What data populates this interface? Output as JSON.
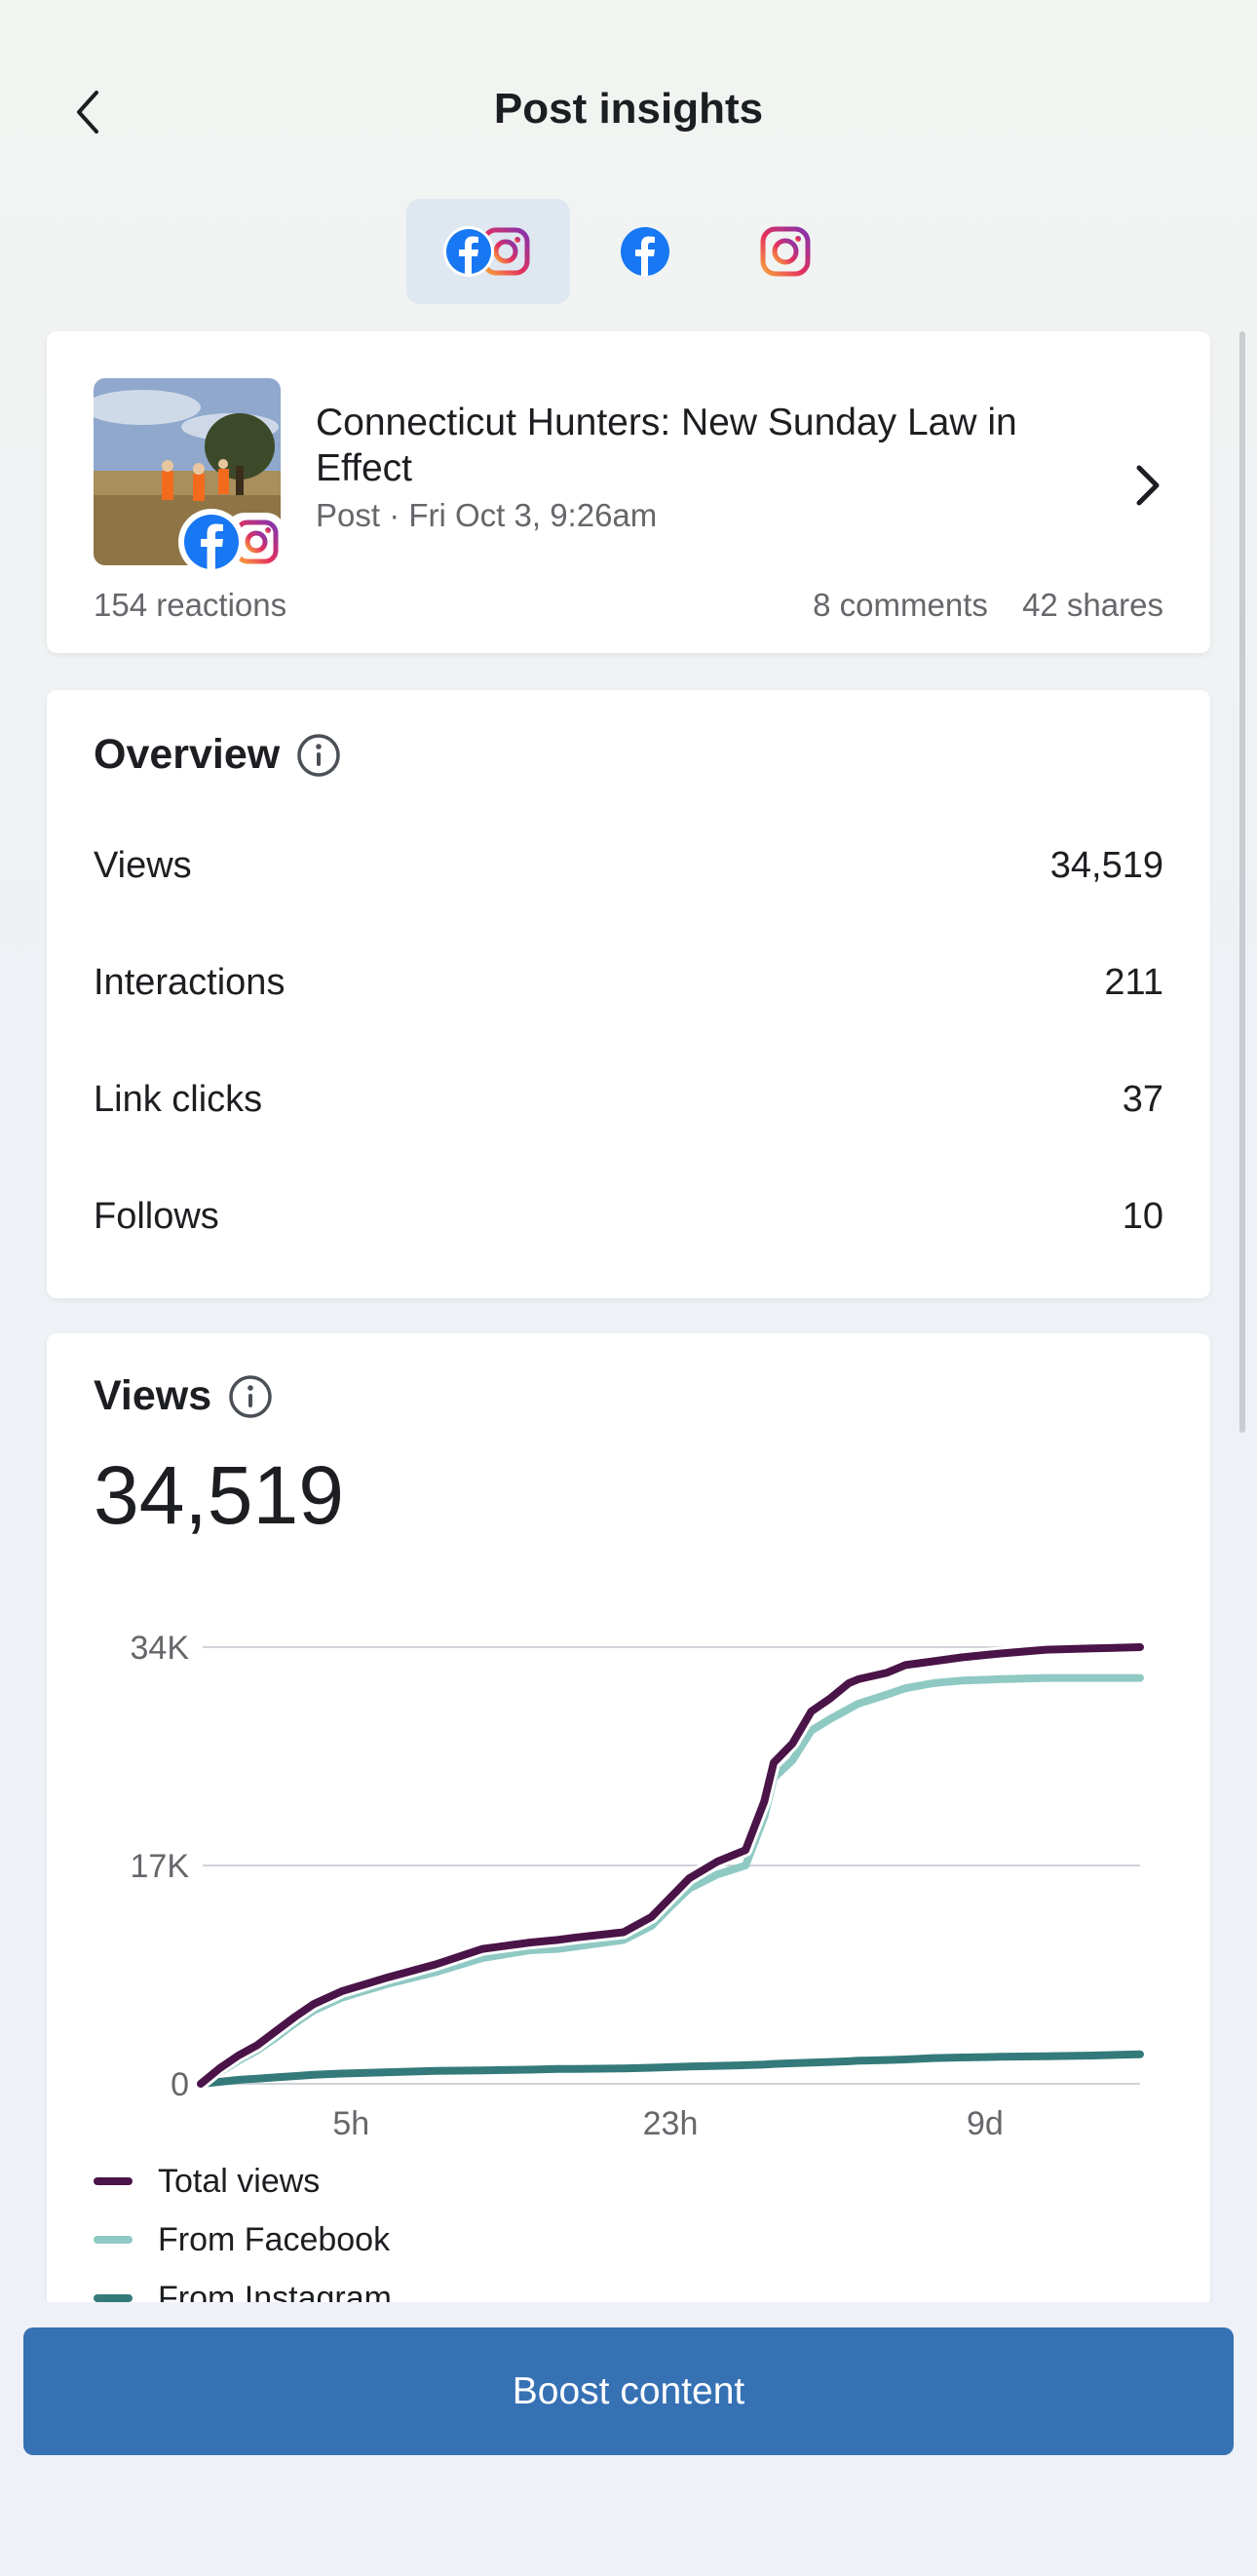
{
  "header": {
    "title": "Post insights"
  },
  "platform_tabs": [
    {
      "name": "Facebook and Instagram",
      "icon": "facebook-instagram-icon",
      "active": true
    },
    {
      "name": "Facebook",
      "icon": "facebook-icon",
      "active": false
    },
    {
      "name": "Instagram",
      "icon": "instagram-icon",
      "active": false
    }
  ],
  "post": {
    "title": "Connecticut Hunters: New Sunday Law in Effect",
    "meta": "Post · Fri Oct 3, 9:26am",
    "reactions": "154 reactions",
    "comments": "8 comments",
    "shares": "42 shares"
  },
  "overview": {
    "title": "Overview",
    "metrics": [
      {
        "label": "Views",
        "value": "34,519"
      },
      {
        "label": "Interactions",
        "value": "211"
      },
      {
        "label": "Link clicks",
        "value": "37"
      },
      {
        "label": "Follows",
        "value": "10"
      }
    ]
  },
  "views": {
    "title": "Views",
    "total": "34,519"
  },
  "chart_data": {
    "type": "line",
    "title": "Views",
    "xlabel": "",
    "ylabel": "",
    "ylim": [
      0,
      34000
    ],
    "y_ticks": [
      "0",
      "17K",
      "34K"
    ],
    "y_tick_values": [
      0,
      17000,
      34000
    ],
    "x_tick_labels": [
      "5h",
      "23h",
      "9d"
    ],
    "x_tick_positions": [
      0.16,
      0.5,
      0.835
    ],
    "x": [
      0,
      0.02,
      0.04,
      0.06,
      0.08,
      0.1,
      0.12,
      0.15,
      0.2,
      0.25,
      0.3,
      0.35,
      0.38,
      0.4,
      0.45,
      0.48,
      0.5,
      0.52,
      0.55,
      0.58,
      0.6,
      0.61,
      0.63,
      0.65,
      0.67,
      0.69,
      0.7,
      0.73,
      0.75,
      0.78,
      0.81,
      0.85,
      0.9,
      0.95,
      1.0
    ],
    "series": [
      {
        "name": "Total views",
        "color": "#4a1448",
        "values": [
          0,
          1200,
          2200,
          3000,
          4100,
          5200,
          6200,
          7200,
          8300,
          9300,
          10500,
          11000,
          11200,
          11400,
          11800,
          13000,
          14500,
          16000,
          17300,
          18200,
          22000,
          25000,
          26500,
          29000,
          30000,
          31200,
          31500,
          32000,
          32600,
          32900,
          33200,
          33500,
          33800,
          33900,
          34000
        ]
      },
      {
        "name": "From Facebook",
        "color": "#8fc9c3",
        "values": [
          0,
          900,
          1800,
          2600,
          3600,
          4700,
          5700,
          6700,
          7800,
          8700,
          9800,
          10400,
          10500,
          10700,
          11200,
          12300,
          13800,
          15200,
          16300,
          17000,
          20800,
          23800,
          25200,
          27500,
          28400,
          29200,
          29600,
          30300,
          30800,
          31200,
          31400,
          31500,
          31600,
          31600,
          31600
        ]
      },
      {
        "name": "From Instagram",
        "color": "#357a7a",
        "values": [
          0,
          150,
          300,
          400,
          500,
          600,
          700,
          800,
          900,
          1000,
          1050,
          1100,
          1150,
          1150,
          1200,
          1250,
          1300,
          1350,
          1400,
          1450,
          1500,
          1550,
          1600,
          1650,
          1700,
          1750,
          1800,
          1850,
          1900,
          2000,
          2050,
          2100,
          2150,
          2200,
          2300
        ]
      }
    ]
  },
  "footer": {
    "boost_label": "Boost content"
  }
}
